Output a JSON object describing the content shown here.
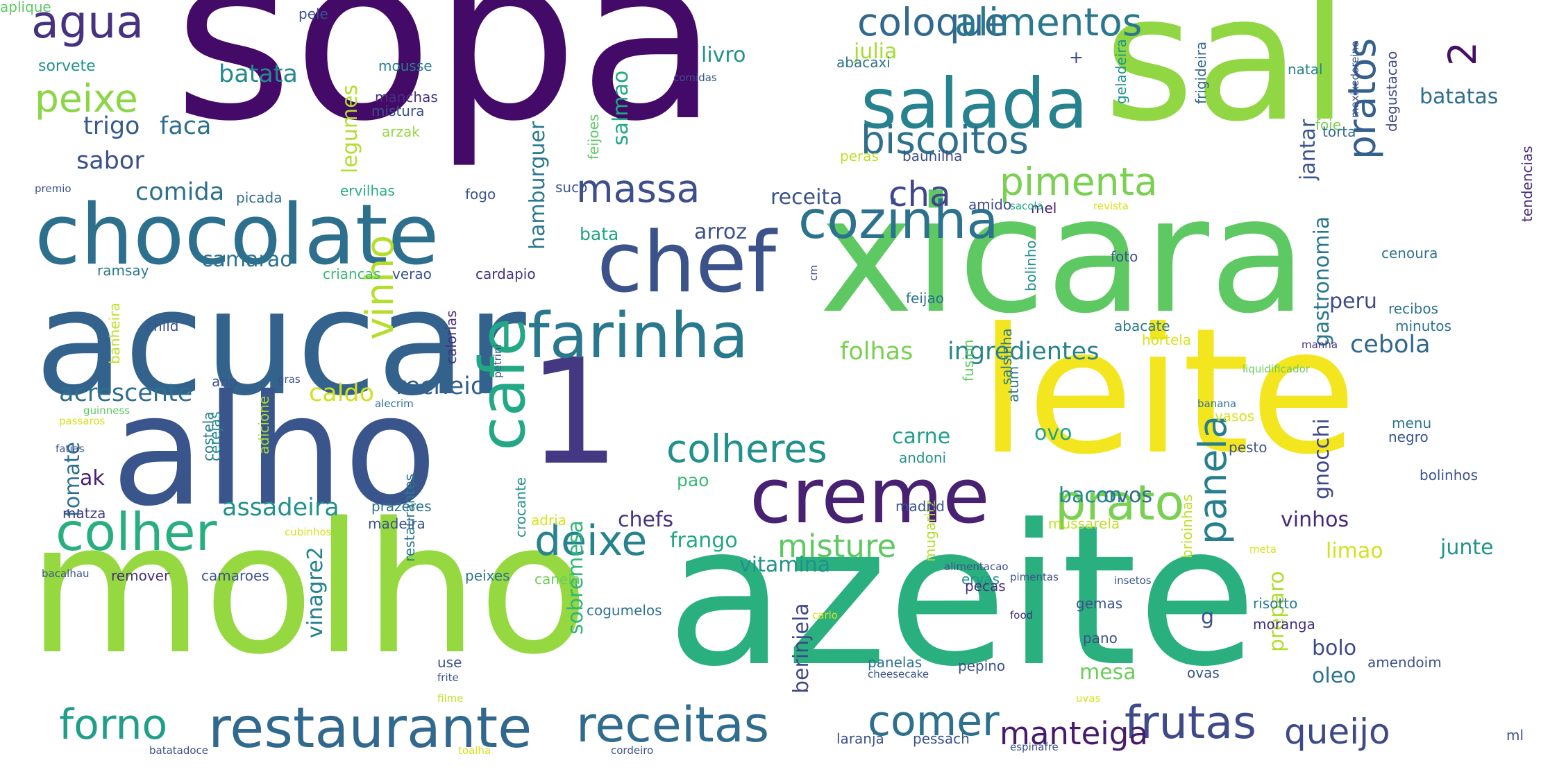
{
  "colors": {
    "background": "#ffffff",
    "palette_viridis": [
      "#440154",
      "#3b528b",
      "#21918c",
      "#5ec962",
      "#fde725"
    ]
  },
  "words": [
    {
      "text": "sopa",
      "color": "#440a68"
    },
    {
      "text": "sal",
      "color": "#90d743"
    },
    {
      "text": "xicara",
      "color": "#5ec962"
    },
    {
      "text": "leite",
      "color": "#f3e61e"
    },
    {
      "text": "azeite",
      "color": "#2ab07f"
    },
    {
      "text": "molho",
      "color": "#95d840"
    },
    {
      "text": "acucar",
      "color": "#33638d"
    },
    {
      "text": "alho",
      "color": "#3a548c"
    },
    {
      "text": "1",
      "color": "#453882"
    },
    {
      "text": "chocolate",
      "color": "#2d708e"
    },
    {
      "text": "chef",
      "color": "#3b528b"
    },
    {
      "text": "farinha",
      "color": "#2a788e"
    },
    {
      "text": "creme",
      "color": "#482173"
    },
    {
      "text": "cafe",
      "color": "#22a884"
    },
    {
      "text": "salada",
      "color": "#26828e"
    },
    {
      "text": "cozinha",
      "color": "#2c728e"
    },
    {
      "text": "restaurante",
      "color": "#31688e"
    },
    {
      "text": "colher",
      "color": "#29af7f"
    },
    {
      "text": "receitas",
      "color": "#2f6c8e"
    },
    {
      "text": "prato",
      "color": "#7ad151"
    },
    {
      "text": "frutas",
      "color": "#3e4a89"
    },
    {
      "text": "agua",
      "color": "#46327e"
    },
    {
      "text": "coloque",
      "color": "#31688e"
    },
    {
      "text": "alimentos",
      "color": "#2a788e"
    },
    {
      "text": "peixe",
      "color": "#8bd646"
    },
    {
      "text": "biscoitos",
      "color": "#2e6f8e"
    },
    {
      "text": "massa",
      "color": "#3d4e8a"
    },
    {
      "text": "pimenta",
      "color": "#7ad151"
    },
    {
      "text": "cha",
      "color": "#3f4788"
    },
    {
      "text": "pratos",
      "color": "#35608d"
    },
    {
      "text": "2",
      "color": "#471063"
    },
    {
      "text": "vinho",
      "color": "#b5de2b"
    },
    {
      "text": "deixe",
      "color": "#26828e"
    },
    {
      "text": "forno",
      "color": "#1f9e89"
    },
    {
      "text": "comer",
      "color": "#2d708e"
    },
    {
      "text": "manteiga",
      "color": "#481a6c"
    },
    {
      "text": "queijo",
      "color": "#3e4989"
    },
    {
      "text": "panela",
      "color": "#277f8e"
    },
    {
      "text": "colheres",
      "color": "#21918c"
    },
    {
      "text": "misture",
      "color": "#5ec962"
    },
    {
      "text": "batatas",
      "color": "#2e6e8e"
    },
    {
      "text": "batata",
      "color": "#23898e"
    },
    {
      "text": "trigo",
      "color": "#375b8d"
    },
    {
      "text": "faca",
      "color": "#2e6e8e"
    },
    {
      "text": "sabor",
      "color": "#3c508b"
    },
    {
      "text": "comida",
      "color": "#2d708e"
    },
    {
      "text": "camarao",
      "color": "#2c728e"
    },
    {
      "text": "acrescente",
      "color": "#2e6e8e"
    },
    {
      "text": "caldo",
      "color": "#d0e11c"
    },
    {
      "text": "recheio",
      "color": "#34618d"
    },
    {
      "text": "assadeira",
      "color": "#20928c"
    },
    {
      "text": "ingredientes",
      "color": "#26828e"
    },
    {
      "text": "cebola",
      "color": "#31688e"
    },
    {
      "text": "folhas",
      "color": "#7ad151"
    },
    {
      "text": "receita",
      "color": "#3b528b"
    },
    {
      "text": "arroz",
      "color": "#3b528b"
    },
    {
      "text": "bata",
      "color": "#20a386"
    },
    {
      "text": "livro",
      "color": "#21918c"
    },
    {
      "text": "julia",
      "color": "#a8db34"
    },
    {
      "text": "jantar",
      "color": "#39558c"
    },
    {
      "text": "salmao",
      "color": "#22a884"
    },
    {
      "text": "hamburguer",
      "color": "#2a788e"
    },
    {
      "text": "legumes",
      "color": "#b2dd2d"
    },
    {
      "text": "gastronomia",
      "color": "#2a788e"
    },
    {
      "text": "peru",
      "color": "#3e4989"
    },
    {
      "text": "carne",
      "color": "#1f9e89"
    },
    {
      "text": "ovo",
      "color": "#20a486"
    },
    {
      "text": "ovos",
      "color": "#2f6c8e"
    },
    {
      "text": "bacon",
      "color": "#23888e"
    },
    {
      "text": "gnocchi",
      "color": "#3e4989"
    },
    {
      "text": "vinhos",
      "color": "#482878"
    },
    {
      "text": "limao",
      "color": "#d2e21b"
    },
    {
      "text": "junte",
      "color": "#1f948c"
    },
    {
      "text": "chefs",
      "color": "#46337e"
    },
    {
      "text": "frango",
      "color": "#22a884"
    },
    {
      "text": "vitamina",
      "color": "#21918c"
    },
    {
      "text": "pao",
      "color": "#3aba76"
    },
    {
      "text": "sobremesa",
      "color": "#33b67a"
    },
    {
      "text": "tomate",
      "color": "#2d718e"
    },
    {
      "text": "ak",
      "color": "#481f70"
    },
    {
      "text": "matza",
      "color": "#424086"
    },
    {
      "text": "vinagre",
      "color": "#25838e"
    },
    {
      "text": "berinjela",
      "color": "#3f4788"
    },
    {
      "text": "mesa",
      "color": "#6ccd5a"
    },
    {
      "text": "bolo",
      "color": "#3e4989"
    },
    {
      "text": "oleo",
      "color": "#2c738e"
    },
    {
      "text": "preparo",
      "color": "#b0dd2f"
    },
    {
      "text": "vinagre2",
      "color": "#25838e"
    },
    {
      "text": "sorvete",
      "color": "#21918c"
    },
    {
      "text": "pele",
      "color": "#3b528b"
    },
    {
      "text": "mousse",
      "color": "#27808e"
    },
    {
      "text": "manchas",
      "color": "#46307e"
    },
    {
      "text": "mistura",
      "color": "#3b528b"
    },
    {
      "text": "arzak",
      "color": "#95d840"
    },
    {
      "text": "abacaxi",
      "color": "#2c728e"
    },
    {
      "text": "+",
      "color": "#3e4989"
    },
    {
      "text": "geladeira",
      "color": "#20938c"
    },
    {
      "text": "comidas",
      "color": "#3b528b"
    },
    {
      "text": "feijoes",
      "color": "#5ec962"
    },
    {
      "text": "peras",
      "color": "#c0df25"
    },
    {
      "text": "baunilha",
      "color": "#3c508b"
    },
    {
      "text": "ervilhas",
      "color": "#27ad81"
    },
    {
      "text": "picada",
      "color": "#2f6c8e"
    },
    {
      "text": "fogo",
      "color": "#3b528b"
    },
    {
      "text": "suco",
      "color": "#39558c"
    },
    {
      "text": "amido",
      "color": "#3e4989"
    },
    {
      "text": "mel",
      "color": "#481b6d"
    },
    {
      "text": "revista",
      "color": "#d8e219"
    },
    {
      "text": "sacola",
      "color": "#22a884"
    },
    {
      "text": "frigideira",
      "color": "#31688e"
    },
    {
      "text": "foie",
      "color": "#7ad151"
    },
    {
      "text": "natal",
      "color": "#26828e"
    },
    {
      "text": "torta",
      "color": "#2f6c8e"
    },
    {
      "text": "degustacao",
      "color": "#3e4989"
    },
    {
      "text": "maxixedoreino",
      "color": "#3b528b"
    },
    {
      "text": "premio",
      "color": "#3b528b"
    },
    {
      "text": "criancas",
      "color": "#3aba76"
    },
    {
      "text": "verao",
      "color": "#3b528b"
    },
    {
      "text": "cardapio",
      "color": "#46337e"
    },
    {
      "text": "ramsay",
      "color": "#2a788e"
    },
    {
      "text": "child",
      "color": "#3b528b"
    },
    {
      "text": "banheira",
      "color": "#c0df25"
    },
    {
      "text": "ano",
      "color": "#3b528b"
    },
    {
      "text": "gras",
      "color": "#3b528b"
    },
    {
      "text": "calorias",
      "color": "#472f7d"
    },
    {
      "text": "petrini",
      "color": "#3b528b"
    },
    {
      "text": "alecrim",
      "color": "#2d708e"
    },
    {
      "text": "guinness",
      "color": "#5ec962"
    },
    {
      "text": "passaros",
      "color": "#d8e219"
    },
    {
      "text": "fatias",
      "color": "#3b528b"
    },
    {
      "text": "costela",
      "color": "#27808e"
    },
    {
      "text": "adicione",
      "color": "#a8db34"
    },
    {
      "text": "cerejas",
      "color": "#23898e"
    },
    {
      "text": "prazeres",
      "color": "#2c728e"
    },
    {
      "text": "madeira",
      "color": "#3b528b"
    },
    {
      "text": "adria",
      "color": "#d8e219"
    },
    {
      "text": "cubinhos",
      "color": "#d8e219"
    },
    {
      "text": "bacalhau",
      "color": "#3b528b"
    },
    {
      "text": "remover",
      "color": "#472f7d"
    },
    {
      "text": "camaroes",
      "color": "#3b528b"
    },
    {
      "text": "restaurantes",
      "color": "#2a788e"
    },
    {
      "text": "peixes",
      "color": "#2c728e"
    },
    {
      "text": "crocante",
      "color": "#21918c"
    },
    {
      "text": "canela",
      "color": "#6ccd5a"
    },
    {
      "text": "cogumelos",
      "color": "#2c728e"
    },
    {
      "text": "use",
      "color": "#3b528b"
    },
    {
      "text": "frite",
      "color": "#3b528b"
    },
    {
      "text": "filme",
      "color": "#c0df25"
    },
    {
      "text": "batatadoce",
      "color": "#3b528b"
    },
    {
      "text": "toalha",
      "color": "#d8e219"
    },
    {
      "text": "cordeiro",
      "color": "#3b528b"
    },
    {
      "text": "carlo",
      "color": "#d8e219"
    },
    {
      "text": "mugaritz",
      "color": "#b5de2b"
    },
    {
      "text": "panelas",
      "color": "#2c728e"
    },
    {
      "text": "cheesecake",
      "color": "#3b528b"
    },
    {
      "text": "laranja",
      "color": "#3b528b"
    },
    {
      "text": "pessach",
      "color": "#3b528b"
    },
    {
      "text": "espinafre",
      "color": "#3b528b"
    },
    {
      "text": "pepino",
      "color": "#3b528b"
    },
    {
      "text": "food",
      "color": "#46307e"
    },
    {
      "text": "pano",
      "color": "#3b528b"
    },
    {
      "text": "uvas",
      "color": "#d8e219"
    },
    {
      "text": "ovas",
      "color": "#3b528b"
    },
    {
      "text": "amendoim",
      "color": "#3b528b"
    },
    {
      "text": "ml",
      "color": "#3b528b"
    },
    {
      "text": "moranga",
      "color": "#46307e"
    },
    {
      "text": "risotto",
      "color": "#2a788e"
    },
    {
      "text": "brioinhas",
      "color": "#c0df25"
    },
    {
      "text": "g",
      "color": "#3b528b"
    },
    {
      "text": "gemas",
      "color": "#3b528b"
    },
    {
      "text": "meta",
      "color": "#d8e219"
    },
    {
      "text": "insetos",
      "color": "#3b528b"
    },
    {
      "text": "pimentas",
      "color": "#3b528b"
    },
    {
      "text": "alimentacao",
      "color": "#3b528b"
    },
    {
      "text": "ervas",
      "color": "#21918c"
    },
    {
      "text": "pecas",
      "color": "#46307e"
    },
    {
      "text": "mussarela",
      "color": "#c0df25"
    },
    {
      "text": "madrid",
      "color": "#3b528b"
    },
    {
      "text": "andoni",
      "color": "#21918c"
    },
    {
      "text": "feijao",
      "color": "#2c728e"
    },
    {
      "text": "atum",
      "color": "#2a788e"
    },
    {
      "text": "bolinho",
      "color": "#21918c"
    },
    {
      "text": "fusion",
      "color": "#5ec962"
    },
    {
      "text": "salsinha",
      "color": "#2a788e"
    },
    {
      "text": "foto",
      "color": "#3b528b"
    },
    {
      "text": "abacate",
      "color": "#2a788e"
    },
    {
      "text": "hortela",
      "color": "#d8e219"
    },
    {
      "text": "cenoura",
      "color": "#2c728e"
    },
    {
      "text": "recibos",
      "color": "#2c728e"
    },
    {
      "text": "minutos",
      "color": "#2c728e"
    },
    {
      "text": "manha",
      "color": "#46307e"
    },
    {
      "text": "tendencias",
      "color": "#46307e"
    },
    {
      "text": "liquidificador",
      "color": "#6ccd5a"
    },
    {
      "text": "banana",
      "color": "#2a788e"
    },
    {
      "text": "vasos",
      "color": "#d8e219"
    },
    {
      "text": "menu",
      "color": "#2c728e"
    },
    {
      "text": "negro",
      "color": "#3b528b"
    },
    {
      "text": "pesto",
      "color": "#3b528b"
    },
    {
      "text": "bolinhos",
      "color": "#3b528b"
    },
    {
      "text": "cm",
      "color": "#3b528b"
    },
    {
      "text": "aplique",
      "color": "#5ec962"
    }
  ]
}
